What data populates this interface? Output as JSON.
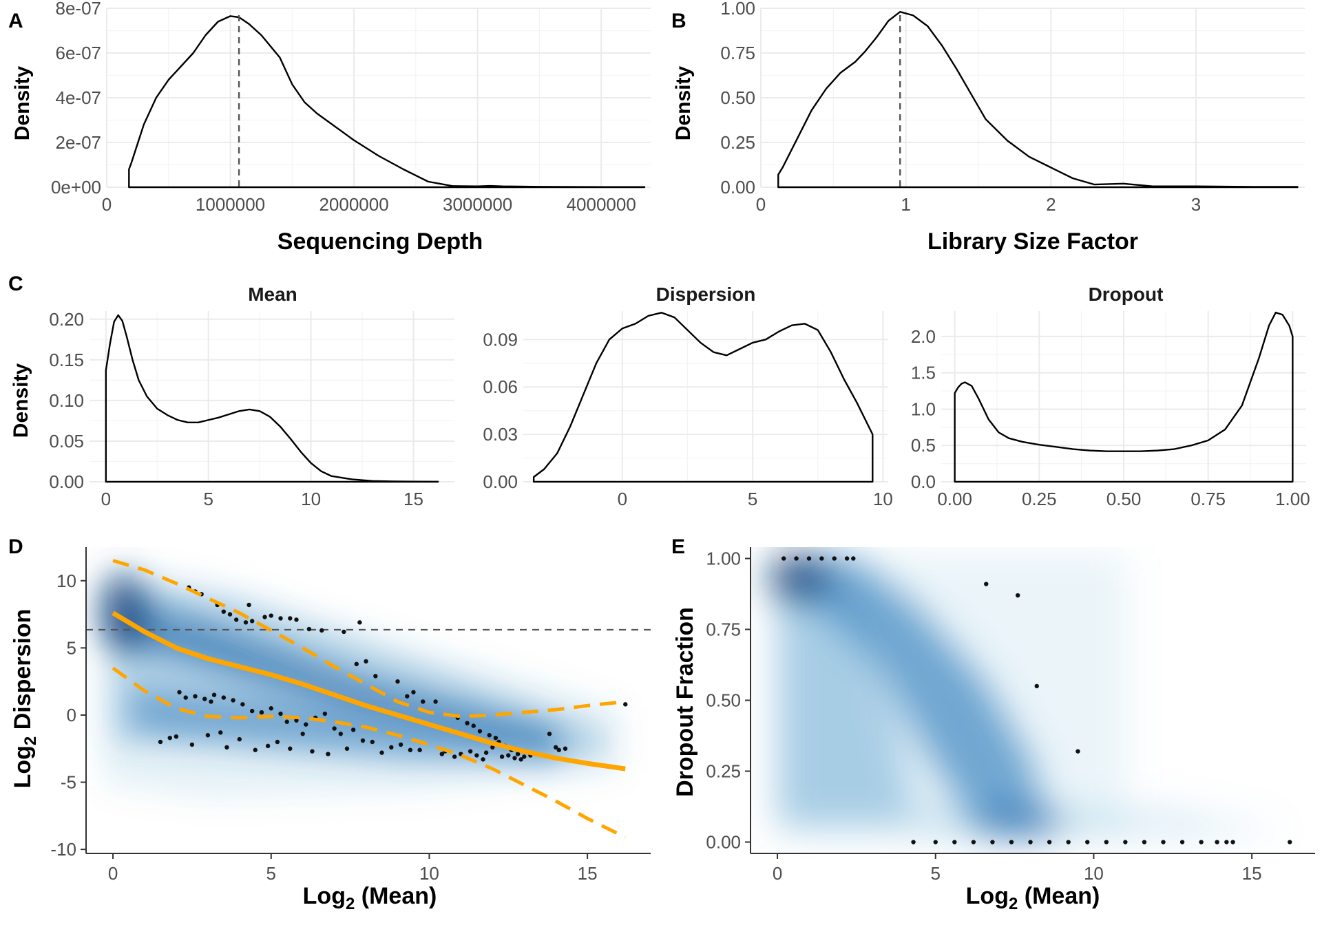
{
  "chart_data": [
    {
      "id": "A",
      "type": "area",
      "label": "A",
      "xlabel": "Sequencing Depth",
      "ylabel": "Density",
      "xlim": [
        0,
        4400000
      ],
      "ylim": [
        0,
        8e-07
      ],
      "xticks": [
        0,
        1000000,
        2000000,
        3000000,
        4000000
      ],
      "xtick_labels": [
        "0",
        "1000000",
        "2000000",
        "3000000",
        "4000000"
      ],
      "yticks": [
        0,
        2e-07,
        4e-07,
        6e-07,
        8e-07
      ],
      "ytick_labels": [
        "0e+00",
        "2e-07",
        "4e-07",
        "6e-07",
        "8e-07"
      ],
      "vline": 1070000,
      "x": [
        180000,
        180000,
        200000,
        300000,
        400000,
        500000,
        600000,
        700000,
        800000,
        900000,
        1000000,
        1070000,
        1150000,
        1250000,
        1400000,
        1500000,
        1600000,
        1700000,
        1800000,
        2000000,
        2200000,
        2400000,
        2600000,
        2800000,
        3000000,
        3100000,
        3200000,
        3500000,
        4000000,
        4350000,
        4350000
      ],
      "y": [
        0,
        8e-08,
        1.1e-07,
        2.8e-07,
        4e-07,
        4.8e-07,
        5.4e-07,
        6e-07,
        6.8e-07,
        7.4e-07,
        7.65e-07,
        7.6e-07,
        7.3e-07,
        6.8e-07,
        5.8e-07,
        4.6e-07,
        3.8e-07,
        3.3e-07,
        2.9e-07,
        2.1e-07,
        1.4e-07,
        8e-08,
        2.5e-08,
        5e-09,
        4e-09,
        6e-09,
        4e-09,
        2e-09,
        1e-09,
        1e-09,
        0
      ]
    },
    {
      "id": "B",
      "type": "area",
      "label": "B",
      "xlabel": "Library Size Factor",
      "ylabel": "Density",
      "xlim": [
        0,
        3.75
      ],
      "ylim": [
        0,
        1.0
      ],
      "xticks": [
        0,
        1,
        2,
        3
      ],
      "xtick_labels": [
        "0",
        "1",
        "2",
        "3"
      ],
      "yticks": [
        0,
        0.25,
        0.5,
        0.75,
        1.0
      ],
      "ytick_labels": [
        "0.00",
        "0.25",
        "0.50",
        "0.75",
        "1.00"
      ],
      "vline": 0.96,
      "x": [
        0.12,
        0.12,
        0.15,
        0.25,
        0.35,
        0.45,
        0.55,
        0.65,
        0.72,
        0.8,
        0.88,
        0.96,
        1.05,
        1.15,
        1.25,
        1.35,
        1.45,
        1.55,
        1.7,
        1.85,
        2.0,
        2.15,
        2.3,
        2.5,
        2.7,
        3.0,
        3.4,
        3.7,
        3.7
      ],
      "y": [
        0,
        0.07,
        0.11,
        0.27,
        0.43,
        0.55,
        0.64,
        0.7,
        0.76,
        0.84,
        0.93,
        0.98,
        0.96,
        0.9,
        0.79,
        0.66,
        0.52,
        0.38,
        0.26,
        0.17,
        0.11,
        0.05,
        0.015,
        0.02,
        0.005,
        0.005,
        0.002,
        0.002,
        0
      ]
    },
    {
      "id": "C-Mean",
      "type": "area",
      "label": "C",
      "title": "Mean",
      "ylabel": "Density",
      "xlim": [
        -0.8,
        17.0
      ],
      "ylim": [
        0,
        0.21
      ],
      "xticks": [
        0,
        5,
        10,
        15
      ],
      "xtick_labels": [
        "0",
        "5",
        "10",
        "15"
      ],
      "yticks": [
        0,
        0.05,
        0.1,
        0.15,
        0.2
      ],
      "ytick_labels": [
        "0.00",
        "0.05",
        "0.10",
        "0.15",
        "0.20"
      ],
      "x": [
        0,
        0,
        0.2,
        0.4,
        0.6,
        0.8,
        1.0,
        1.3,
        1.6,
        2.0,
        2.5,
        3.0,
        3.5,
        4.0,
        4.5,
        5.0,
        5.5,
        6.0,
        6.5,
        7.0,
        7.5,
        8.0,
        8.5,
        9.0,
        9.5,
        10.0,
        10.5,
        11.0,
        12.0,
        13.0,
        14.0,
        15.0,
        16.2,
        16.2
      ],
      "y": [
        0,
        0.137,
        0.17,
        0.197,
        0.205,
        0.198,
        0.18,
        0.15,
        0.125,
        0.105,
        0.09,
        0.082,
        0.076,
        0.073,
        0.073,
        0.076,
        0.079,
        0.083,
        0.087,
        0.089,
        0.087,
        0.08,
        0.068,
        0.053,
        0.037,
        0.023,
        0.013,
        0.007,
        0.003,
        0.001,
        0.0005,
        0.0002,
        0.0001,
        0
      ]
    },
    {
      "id": "C-Dispersion",
      "type": "area",
      "title": "Dispersion",
      "xlim": [
        -3.8,
        10.2
      ],
      "ylim": [
        0,
        0.108
      ],
      "xticks": [
        0,
        5,
        10
      ],
      "xtick_labels": [
        "0",
        "5",
        "10"
      ],
      "yticks": [
        0,
        0.03,
        0.06,
        0.09
      ],
      "ytick_labels": [
        "0.00",
        "0.03",
        "0.06",
        "0.09"
      ],
      "x": [
        -3.4,
        -3.4,
        -3.0,
        -2.5,
        -2.0,
        -1.5,
        -1.0,
        -0.5,
        0.0,
        0.5,
        1.0,
        1.5,
        2.0,
        2.5,
        3.0,
        3.5,
        4.0,
        4.5,
        5.0,
        5.5,
        6.0,
        6.5,
        7.0,
        7.5,
        8.0,
        8.5,
        9.0,
        9.6,
        9.6
      ],
      "y": [
        0,
        0.003,
        0.008,
        0.018,
        0.035,
        0.055,
        0.075,
        0.09,
        0.097,
        0.1,
        0.105,
        0.107,
        0.104,
        0.096,
        0.088,
        0.082,
        0.08,
        0.084,
        0.088,
        0.09,
        0.095,
        0.099,
        0.1,
        0.096,
        0.082,
        0.065,
        0.05,
        0.03,
        0
      ]
    },
    {
      "id": "C-Dropout",
      "type": "area",
      "title": "Dropout",
      "xlim": [
        -0.04,
        1.04
      ],
      "ylim": [
        0,
        2.35
      ],
      "xticks": [
        0,
        0.25,
        0.5,
        0.75,
        1.0
      ],
      "xtick_labels": [
        "0.00",
        "0.25",
        "0.50",
        "0.75",
        "1.00"
      ],
      "yticks": [
        0,
        0.5,
        1.0,
        1.5,
        2.0
      ],
      "ytick_labels": [
        "0.0",
        "0.5",
        "1.0",
        "1.5",
        "2.0"
      ],
      "x": [
        0,
        0,
        0.01,
        0.02,
        0.03,
        0.05,
        0.07,
        0.1,
        0.13,
        0.16,
        0.2,
        0.25,
        0.3,
        0.35,
        0.4,
        0.45,
        0.5,
        0.55,
        0.6,
        0.65,
        0.7,
        0.75,
        0.8,
        0.85,
        0.9,
        0.93,
        0.95,
        0.97,
        0.99,
        1.0,
        1.0
      ],
      "y": [
        0,
        1.22,
        1.3,
        1.35,
        1.37,
        1.32,
        1.15,
        0.86,
        0.68,
        0.6,
        0.55,
        0.51,
        0.48,
        0.45,
        0.43,
        0.42,
        0.42,
        0.42,
        0.43,
        0.45,
        0.5,
        0.57,
        0.72,
        1.05,
        1.7,
        2.15,
        2.33,
        2.3,
        2.15,
        2.0,
        0
      ]
    },
    {
      "id": "D",
      "type": "scatter",
      "label": "D",
      "xlabel": "Log2 (Mean)",
      "ylabel": "Log2 Dispersion",
      "xlim": [
        -0.85,
        17.0
      ],
      "ylim": [
        -10.3,
        12.5
      ],
      "xticks": [
        0,
        5,
        10,
        15
      ],
      "xtick_labels": [
        "0",
        "5",
        "10",
        "15"
      ],
      "yticks": [
        -10,
        -5,
        0,
        5,
        10
      ],
      "ytick_labels": [
        "-10",
        "-5",
        "0",
        "5",
        "10"
      ],
      "hline": 6.35,
      "trend": {
        "x": [
          0,
          1,
          2,
          3,
          4,
          5,
          6,
          7,
          8,
          9,
          10,
          11,
          12,
          13,
          14,
          15,
          16.2
        ],
        "y": [
          7.6,
          6.2,
          5.0,
          4.2,
          3.6,
          3.0,
          2.3,
          1.5,
          0.7,
          0.0,
          -0.7,
          -1.4,
          -2.1,
          -2.7,
          -3.2,
          -3.6,
          -4.0
        ]
      },
      "upper_band": {
        "x": [
          0,
          1,
          2,
          3,
          4,
          5,
          6,
          7,
          8,
          9,
          10,
          11,
          12,
          13,
          14,
          15,
          16.2
        ],
        "y": [
          11.5,
          10.8,
          9.8,
          8.7,
          7.6,
          6.3,
          5.0,
          3.6,
          2.3,
          1.0,
          0.2,
          -0.1,
          0.0,
          0.2,
          0.4,
          0.7,
          1.0
        ]
      },
      "lower_band": {
        "x": [
          0,
          1,
          2,
          3,
          4,
          5,
          6,
          7,
          8,
          9,
          10,
          11,
          12,
          13,
          14,
          15,
          16.2
        ],
        "y": [
          3.5,
          1.8,
          0.5,
          -0.1,
          -0.2,
          -0.1,
          -0.2,
          -0.5,
          -0.9,
          -1.5,
          -2.2,
          -3.0,
          -4.0,
          -5.2,
          -6.4,
          -7.7,
          -9.1
        ]
      },
      "points_x": [
        2.4,
        2.6,
        2.8,
        3.3,
        3.5,
        3.7,
        3.9,
        4.2,
        4.4,
        4.3,
        4.8,
        5.0,
        5.3,
        5.6,
        5.8,
        6.2,
        6.6,
        7.3,
        7.8,
        7.7,
        8.0,
        8.3,
        9.0,
        9.3,
        9.5,
        9.8,
        10.2,
        10.9,
        11.2,
        11.4,
        11.6,
        11.9,
        12.1,
        12.2,
        12.4,
        12.6,
        12.8,
        13.0,
        13.8,
        14.0,
        14.1,
        2.1,
        2.3,
        2.6,
        2.9,
        3.1,
        3.2,
        3.5,
        3.8,
        4.1,
        4.4,
        4.7,
        5.0,
        5.3,
        5.5,
        5.8,
        6.1,
        6.4,
        6.7,
        7.0,
        7.2,
        7.6,
        8.2,
        8.8,
        9.4,
        10.5,
        11.0,
        11.5,
        11.8,
        12.3,
        12.7,
        13.2,
        1.5,
        1.8,
        2.0,
        2.5,
        3.0,
        3.4,
        3.6,
        4.0,
        4.5,
        4.9,
        5.2,
        5.6,
        6.0,
        6.3,
        6.8,
        7.4,
        7.9,
        8.5,
        9.1,
        9.7,
        10.4,
        10.8,
        11.3,
        11.7,
        12.0,
        12.5,
        12.9,
        14.3,
        16.2
      ],
      "points_y": [
        9.5,
        9.2,
        9.0,
        8.2,
        7.7,
        7.5,
        7.1,
        6.9,
        7.0,
        8.2,
        7.3,
        7.4,
        7.2,
        7.2,
        7.1,
        6.4,
        6.3,
        6.2,
        6.9,
        3.8,
        4.0,
        2.9,
        2.5,
        1.4,
        1.7,
        1.0,
        1.0,
        -0.2,
        -0.6,
        -0.8,
        -1.2,
        -1.5,
        -1.7,
        -2.0,
        -2.3,
        -2.6,
        -2.9,
        -3.1,
        -1.4,
        -2.4,
        -2.6,
        1.7,
        1.3,
        1.4,
        1.2,
        1.0,
        1.5,
        1.3,
        1.1,
        0.8,
        0.3,
        0.2,
        0.5,
        0.1,
        -0.5,
        -0.4,
        -0.7,
        -0.2,
        0.1,
        -1.0,
        -1.4,
        -1.1,
        -2.0,
        -2.4,
        -2.6,
        -2.7,
        -2.9,
        -3.0,
        -2.8,
        -3.1,
        -3.2,
        -3.0,
        -2.0,
        -1.7,
        -1.6,
        -2.2,
        -1.5,
        -1.3,
        -2.4,
        -1.8,
        -2.6,
        -2.3,
        -2.0,
        -2.5,
        -1.4,
        -2.7,
        -2.9,
        -2.5,
        -1.9,
        -2.8,
        -2.2,
        -2.6,
        -2.9,
        -3.1,
        -2.7,
        -3.3,
        -2.4,
        -3.0,
        -3.3,
        -2.5,
        0.8
      ]
    },
    {
      "id": "E",
      "type": "scatter",
      "label": "E",
      "xlabel": "Log2 (Mean)",
      "ylabel": "Dropout Fraction",
      "xlim": [
        -0.85,
        17.0
      ],
      "ylim": [
        -0.04,
        1.04
      ],
      "xticks": [
        0,
        5,
        10,
        15
      ],
      "xtick_labels": [
        "0",
        "5",
        "10",
        "15"
      ],
      "yticks": [
        0,
        0.25,
        0.5,
        0.75,
        1.0
      ],
      "ytick_labels": [
        "0.00",
        "0.25",
        "0.50",
        "0.75",
        "1.00"
      ],
      "points_x": [
        6.6,
        7.6,
        8.2,
        9.5,
        4.3,
        5.0,
        5.6,
        6.2,
        6.8,
        7.4,
        8.0,
        8.6,
        9.2,
        9.8,
        10.4,
        11.0,
        11.6,
        12.2,
        12.8,
        13.4,
        13.9,
        14.2,
        14.4,
        16.2,
        0.2,
        0.6,
        1.0,
        1.4,
        1.8,
        2.2,
        2.4
      ],
      "points_y": [
        0.91,
        0.87,
        0.55,
        0.32,
        0.0,
        0.0,
        0.0,
        0.0,
        0.0,
        0.0,
        0.0,
        0.0,
        0.0,
        0.0,
        0.0,
        0.0,
        0.0,
        0.0,
        0.0,
        0.0,
        0.0,
        0.0,
        0.0,
        0.0,
        1.0,
        1.0,
        1.0,
        1.0,
        1.0,
        1.0,
        1.0
      ]
    }
  ]
}
